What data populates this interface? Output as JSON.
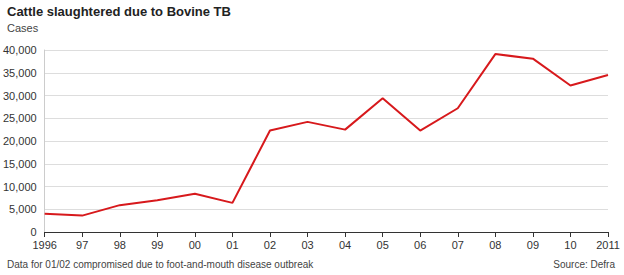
{
  "chart_data": {
    "type": "line",
    "title": "Cattle slaughtered due to Bovine TB",
    "ylabel": "Cases",
    "note": "Data for 01/02 compromised due to foot-and-mouth disease outbreak",
    "source": "Source: Defra",
    "categories": [
      "1996",
      "97",
      "98",
      "99",
      "00",
      "01",
      "02",
      "03",
      "04",
      "05",
      "06",
      "07",
      "08",
      "09",
      "10",
      "2011"
    ],
    "values": [
      4000,
      3600,
      5900,
      7000,
      8400,
      6400,
      22300,
      24200,
      22500,
      29400,
      22300,
      27200,
      39100,
      38100,
      32200,
      34500
    ],
    "color": "#d7191c",
    "ylim": [
      0,
      40000
    ],
    "yticks": [
      0,
      {
        "value": 5000,
        "label": "5,000"
      },
      {
        "value": 10000,
        "label": "10,000"
      },
      {
        "value": 15000,
        "label": "15,000"
      },
      {
        "value": 20000,
        "label": "20,000"
      },
      {
        "value": 25000,
        "label": "25,000"
      },
      {
        "value": 30000,
        "label": "30,000"
      },
      {
        "value": 35000,
        "label": "35,000"
      },
      {
        "value": 40000,
        "label": "40,000"
      }
    ],
    "grid": true
  }
}
